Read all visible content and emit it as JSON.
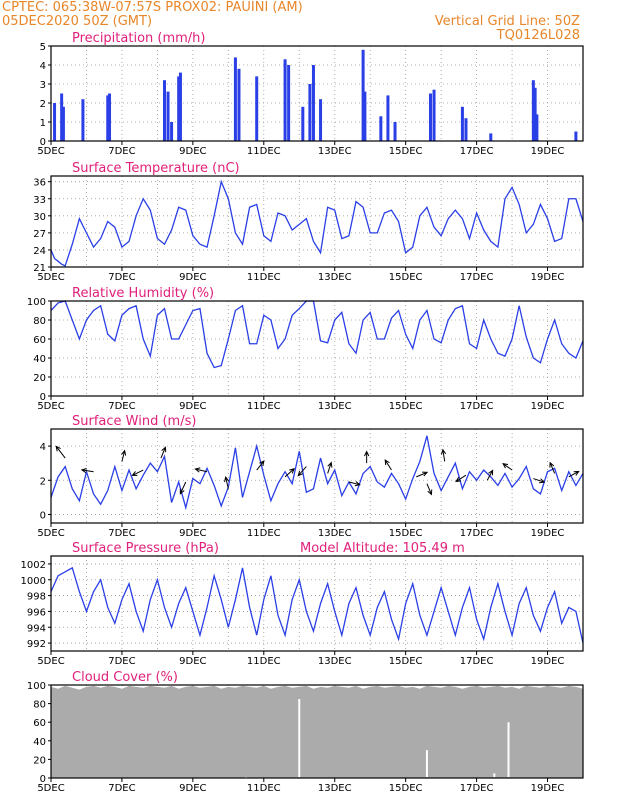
{
  "header": {
    "line1": "CPTEC:   065:38W-07:57S   PROX02: PAUINI (AM)",
    "line2_left": "05DEC2020 50Z (GMT)",
    "line2_right": "Vertical Grid Line: 50Z",
    "line3_right": "TQ0126L028"
  },
  "colors": {
    "header": "#e8862a",
    "panel_title": "#e0207a",
    "series": "#2a3fe6",
    "cloud": "#ababab"
  },
  "x_tick_labels": [
    "5DEC",
    "7DEC",
    "9DEC",
    "11DEC",
    "13DEC",
    "15DEC",
    "17DEC",
    "19DEC"
  ],
  "x_range_days": [
    5,
    20
  ],
  "chart_data": [
    {
      "type": "bar",
      "title": "Precipitation (mm/h)",
      "yticks": [
        "0",
        "1",
        "2",
        "3",
        "4",
        "5"
      ],
      "ylim": [
        0,
        5
      ],
      "x": [
        5.1,
        5.3,
        5.35,
        5.9,
        6.6,
        6.65,
        8.2,
        8.3,
        8.4,
        8.6,
        8.65,
        10.2,
        10.3,
        10.8,
        11.6,
        11.7,
        12.1,
        12.3,
        12.4,
        12.6,
        13.8,
        13.85,
        14.3,
        14.5,
        14.7,
        15.7,
        15.8,
        16.6,
        16.7,
        17.4,
        18.6,
        18.65,
        18.7,
        19.8
      ],
      "values": [
        2.0,
        2.5,
        1.8,
        2.2,
        2.4,
        2.5,
        3.2,
        2.6,
        1.0,
        3.4,
        3.6,
        4.4,
        3.8,
        3.4,
        4.3,
        4.0,
        1.8,
        3.0,
        4.0,
        2.2,
        4.8,
        2.6,
        1.3,
        2.4,
        1.0,
        2.5,
        2.7,
        1.8,
        1.2,
        0.4,
        3.2,
        2.8,
        1.4,
        0.5
      ],
      "grid": true
    },
    {
      "type": "line",
      "title": "Surface Temperature (nC)",
      "yticks": [
        "21",
        "24",
        "27",
        "30",
        "33",
        "36"
      ],
      "ylim": [
        21,
        37
      ],
      "x": [
        5.0,
        5.1,
        5.2,
        5.3,
        5.4,
        5.6,
        5.8,
        6.0,
        6.2,
        6.4,
        6.6,
        6.8,
        7.0,
        7.2,
        7.4,
        7.6,
        7.8,
        8.0,
        8.2,
        8.4,
        8.6,
        8.8,
        9.0,
        9.2,
        9.4,
        9.6,
        9.8,
        10.0,
        10.2,
        10.4,
        10.6,
        10.8,
        11.0,
        11.2,
        11.4,
        11.6,
        11.8,
        12.0,
        12.2,
        12.4,
        12.6,
        12.8,
        13.0,
        13.2,
        13.4,
        13.6,
        13.8,
        14.0,
        14.2,
        14.4,
        14.6,
        14.8,
        15.0,
        15.2,
        15.4,
        15.6,
        15.8,
        16.0,
        16.2,
        16.4,
        16.6,
        16.8,
        17.0,
        17.2,
        17.4,
        17.6,
        17.8,
        18.0,
        18.2,
        18.4,
        18.6,
        18.8,
        19.0,
        19.2,
        19.4,
        19.6,
        19.8,
        20.0
      ],
      "values": [
        24.0,
        22.5,
        22.0,
        21.5,
        21.2,
        25.0,
        29.5,
        27.0,
        24.5,
        26.0,
        29.0,
        28.0,
        24.5,
        25.5,
        30.0,
        33.0,
        31.0,
        26.0,
        25.0,
        27.5,
        31.5,
        31.0,
        26.5,
        25.0,
        24.5,
        30.0,
        36.0,
        33.0,
        27.0,
        25.0,
        31.5,
        32.0,
        26.5,
        25.5,
        30.5,
        30.0,
        27.5,
        28.5,
        29.5,
        25.5,
        23.5,
        31.5,
        31.0,
        26.0,
        26.5,
        32.5,
        31.5,
        27.0,
        27.0,
        30.5,
        31.0,
        29.0,
        23.5,
        24.5,
        30.0,
        31.5,
        28.0,
        26.5,
        29.5,
        31.0,
        29.5,
        26.0,
        30.5,
        27.5,
        25.5,
        24.5,
        33.0,
        35.0,
        32.0,
        27.0,
        28.5,
        32.0,
        29.5,
        25.5,
        26.0,
        33.0,
        33.0,
        29.0
      ],
      "grid": true
    },
    {
      "type": "line",
      "title": "Relative Humidity (%)",
      "yticks": [
        "0",
        "20",
        "40",
        "60",
        "80",
        "100"
      ],
      "ylim": [
        0,
        100
      ],
      "x": [
        5.0,
        5.2,
        5.4,
        5.6,
        5.8,
        6.0,
        6.2,
        6.4,
        6.6,
        6.8,
        7.0,
        7.2,
        7.4,
        7.6,
        7.8,
        8.0,
        8.2,
        8.4,
        8.6,
        8.8,
        9.0,
        9.2,
        9.4,
        9.6,
        9.8,
        10.0,
        10.2,
        10.4,
        10.6,
        10.8,
        11.0,
        11.2,
        11.4,
        11.6,
        11.8,
        12.0,
        12.2,
        12.4,
        12.6,
        12.8,
        13.0,
        13.2,
        13.4,
        13.6,
        13.8,
        14.0,
        14.2,
        14.4,
        14.6,
        14.8,
        15.0,
        15.2,
        15.4,
        15.6,
        15.8,
        16.0,
        16.2,
        16.4,
        16.6,
        16.8,
        17.0,
        17.2,
        17.4,
        17.6,
        17.8,
        18.0,
        18.2,
        18.4,
        18.6,
        18.8,
        19.0,
        19.2,
        19.4,
        19.6,
        19.8,
        20.0
      ],
      "values": [
        90,
        98,
        100,
        80,
        60,
        80,
        90,
        95,
        65,
        58,
        85,
        92,
        95,
        60,
        42,
        85,
        92,
        60,
        60,
        75,
        90,
        92,
        45,
        30,
        32,
        60,
        90,
        95,
        55,
        55,
        85,
        80,
        50,
        60,
        85,
        92,
        100,
        100,
        58,
        56,
        80,
        88,
        55,
        45,
        80,
        88,
        60,
        60,
        82,
        90,
        65,
        50,
        80,
        90,
        60,
        56,
        80,
        92,
        95,
        55,
        50,
        80,
        60,
        45,
        42,
        60,
        95,
        62,
        40,
        35,
        60,
        80,
        55,
        45,
        40,
        58
      ],
      "grid": true
    },
    {
      "type": "line",
      "title": "Surface Wind (m/s)",
      "yticks": [
        "0",
        "2",
        "4"
      ],
      "ylim": [
        -0.5,
        5
      ],
      "x": [
        5.0,
        5.2,
        5.4,
        5.6,
        5.8,
        6.0,
        6.2,
        6.4,
        6.6,
        6.8,
        7.0,
        7.2,
        7.4,
        7.6,
        7.8,
        8.0,
        8.2,
        8.4,
        8.6,
        8.8,
        9.0,
        9.2,
        9.4,
        9.6,
        9.8,
        10.0,
        10.2,
        10.4,
        10.6,
        10.8,
        11.0,
        11.2,
        11.4,
        11.6,
        11.8,
        12.0,
        12.2,
        12.4,
        12.6,
        12.8,
        13.0,
        13.2,
        13.4,
        13.6,
        13.8,
        14.0,
        14.2,
        14.4,
        14.6,
        14.8,
        15.0,
        15.2,
        15.4,
        15.6,
        15.8,
        16.0,
        16.2,
        16.4,
        16.6,
        16.8,
        17.0,
        17.2,
        17.4,
        17.6,
        17.8,
        18.0,
        18.2,
        18.4,
        18.6,
        18.8,
        19.0,
        19.2,
        19.4,
        19.6,
        19.8,
        20.0
      ],
      "values": [
        1.0,
        2.2,
        2.8,
        1.5,
        0.8,
        2.5,
        1.2,
        0.6,
        1.4,
        2.8,
        1.4,
        2.6,
        1.5,
        2.3,
        3.0,
        2.5,
        3.4,
        0.7,
        1.9,
        0.4,
        2.1,
        1.8,
        2.7,
        1.7,
        0.5,
        1.6,
        3.9,
        1.0,
        2.5,
        4.0,
        2.3,
        0.8,
        1.8,
        2.5,
        1.8,
        3.7,
        1.3,
        1.5,
        3.3,
        1.8,
        2.6,
        1.1,
        1.9,
        1.2,
        2.4,
        2.8,
        1.9,
        1.6,
        2.4,
        1.8,
        0.9,
        2.1,
        3.1,
        4.6,
        2.4,
        1.4,
        2.2,
        3.0,
        1.5,
        2.5,
        2.0,
        2.6,
        2.2,
        1.7,
        2.4,
        1.6,
        2.1,
        2.8,
        1.5,
        1.2,
        2.5,
        2.7,
        1.4,
        2.5,
        1.7,
        2.4
      ],
      "arrows": [
        [
          5.4,
          3.3,
          -1.0,
          1.3
        ],
        [
          6.2,
          2.5,
          -1.3,
          0.2
        ],
        [
          7.0,
          3.1,
          0.3,
          1.2
        ],
        [
          7.6,
          2.6,
          -1.2,
          -0.6
        ],
        [
          8.1,
          3.3,
          0.5,
          1.2
        ],
        [
          8.8,
          1.9,
          -0.6,
          -1.3
        ],
        [
          9.4,
          2.5,
          -1.3,
          0.3
        ],
        [
          10.0,
          1.5,
          -0.3,
          1.3
        ],
        [
          10.8,
          2.6,
          0.8,
          1.0
        ],
        [
          11.6,
          2.2,
          1.0,
          0.9
        ],
        [
          12.2,
          2.8,
          -0.9,
          -1.0
        ],
        [
          12.8,
          2.4,
          0.4,
          1.2
        ],
        [
          13.4,
          1.9,
          1.2,
          -0.3
        ],
        [
          13.9,
          3.0,
          0.0,
          1.3
        ],
        [
          14.6,
          2.6,
          -0.7,
          1.1
        ],
        [
          15.3,
          2.2,
          1.2,
          0.5
        ],
        [
          15.6,
          1.8,
          0.5,
          -1.2
        ],
        [
          16.1,
          3.1,
          -0.2,
          1.3
        ],
        [
          16.7,
          2.3,
          -1.1,
          -0.7
        ],
        [
          17.3,
          2.0,
          0.6,
          1.1
        ],
        [
          18.0,
          2.6,
          -1.0,
          0.7
        ],
        [
          18.6,
          2.1,
          1.2,
          -0.4
        ],
        [
          19.2,
          2.4,
          -0.5,
          1.2
        ],
        [
          19.6,
          2.2,
          1.1,
          0.6
        ]
      ],
      "grid": true
    },
    {
      "type": "line",
      "title": "Surface Pressure (hPa)",
      "annotation": "Model Altitude: 105.49 m",
      "yticks": [
        "992",
        "994",
        "996",
        "998",
        "1000",
        "1002"
      ],
      "ylim": [
        991,
        1003
      ],
      "x": [
        5.0,
        5.2,
        5.4,
        5.6,
        5.8,
        6.0,
        6.2,
        6.4,
        6.6,
        6.8,
        7.0,
        7.2,
        7.4,
        7.6,
        7.8,
        8.0,
        8.2,
        8.4,
        8.6,
        8.8,
        9.0,
        9.2,
        9.4,
        9.6,
        9.8,
        10.0,
        10.2,
        10.4,
        10.6,
        10.8,
        11.0,
        11.2,
        11.4,
        11.6,
        11.8,
        12.0,
        12.2,
        12.4,
        12.6,
        12.8,
        13.0,
        13.2,
        13.4,
        13.6,
        13.8,
        14.0,
        14.2,
        14.4,
        14.6,
        14.8,
        15.0,
        15.2,
        15.4,
        15.6,
        15.8,
        16.0,
        16.2,
        16.4,
        16.6,
        16.8,
        17.0,
        17.2,
        17.4,
        17.6,
        17.8,
        18.0,
        18.2,
        18.4,
        18.6,
        18.8,
        19.0,
        19.2,
        19.4,
        19.6,
        19.8,
        20.0
      ],
      "values": [
        998.5,
        1000.5,
        1001.0,
        1001.5,
        998.5,
        996.0,
        998.5,
        1000.0,
        996.5,
        994.5,
        997.5,
        999.5,
        996.0,
        993.5,
        997.5,
        1000.0,
        996.5,
        994.0,
        997.0,
        999.0,
        996.0,
        993.0,
        996.5,
        1000.5,
        997.5,
        994.0,
        997.5,
        1001.5,
        996.5,
        993.0,
        997.5,
        1000.5,
        995.5,
        993.0,
        997.5,
        1000.0,
        996.0,
        993.5,
        997.0,
        999.5,
        996.0,
        993.0,
        997.0,
        999.0,
        995.5,
        993.0,
        996.5,
        998.5,
        995.0,
        992.5,
        997.0,
        999.5,
        995.5,
        993.0,
        996.0,
        999.0,
        996.0,
        993.0,
        996.5,
        999.0,
        995.0,
        992.5,
        996.5,
        999.5,
        996.0,
        993.0,
        997.0,
        999.0,
        995.5,
        993.5,
        996.5,
        998.5,
        994.5,
        996.5,
        996.0,
        992.0
      ],
      "grid": true
    },
    {
      "type": "area",
      "title": "Cloud Cover (%)",
      "yticks": [
        "0",
        "20",
        "40",
        "60",
        "80",
        "100"
      ],
      "ylim": [
        0,
        100
      ],
      "x": [
        5.0,
        5.2,
        5.4,
        5.6,
        5.8,
        6.0,
        6.2,
        6.4,
        6.6,
        6.8,
        7.0,
        7.2,
        7.4,
        7.6,
        7.8,
        8.0,
        8.2,
        8.4,
        8.6,
        8.8,
        9.0,
        9.2,
        9.4,
        9.6,
        9.8,
        10.0,
        10.2,
        10.4,
        10.6,
        10.8,
        11.0,
        11.2,
        11.4,
        11.6,
        11.8,
        12.0,
        12.2,
        12.4,
        12.6,
        12.8,
        13.0,
        13.2,
        13.4,
        13.6,
        13.8,
        14.0,
        14.2,
        14.4,
        14.6,
        14.8,
        15.0,
        15.2,
        15.4,
        15.6,
        15.8,
        16.0,
        16.2,
        16.4,
        16.6,
        16.8,
        17.0,
        17.2,
        17.4,
        17.6,
        17.8,
        18.0,
        18.2,
        18.4,
        18.6,
        18.8,
        19.0,
        19.2,
        19.4,
        19.6,
        19.8,
        20.0
      ],
      "values": [
        98,
        96,
        99,
        97,
        95,
        98,
        99,
        97,
        99,
        98,
        96,
        99,
        98,
        97,
        99,
        98,
        97,
        99,
        96,
        98,
        99,
        97,
        98,
        99,
        96,
        98,
        97,
        99,
        98,
        97,
        99,
        96,
        98,
        99,
        97,
        98,
        99,
        96,
        98,
        97,
        99,
        98,
        97,
        99,
        96,
        98,
        99,
        97,
        98,
        99,
        97,
        98,
        96,
        99,
        98,
        97,
        99,
        98,
        96,
        98,
        99,
        97,
        98,
        99,
        97,
        98,
        96,
        99,
        98,
        97,
        99,
        98,
        97,
        99,
        98,
        96
      ],
      "dips": [
        [
          10.5,
          0
        ],
        [
          15.6,
          30
        ],
        [
          17.5,
          5
        ],
        [
          17.9,
          60
        ],
        [
          12.0,
          85
        ]
      ],
      "grid": true
    }
  ]
}
